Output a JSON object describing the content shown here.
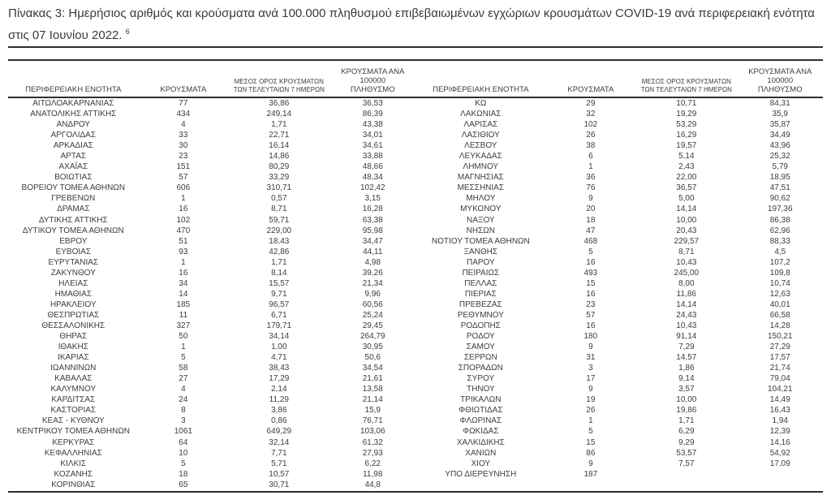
{
  "title": {
    "text": "Πίνακας 3:  Ημερήσιος αριθμός και κρούσματα ανά 100.000 πληθυσμού επιβεβαιωμένων εγχώριων κρουσμάτων COVID-19 ανά περιφερειακή ενότητα στις 07 Ιουνίου 2022.",
    "footnote_marker": "6"
  },
  "table": {
    "headers": {
      "region": "ΠΕΡΙΦΕΡΕΙΑΚΗ ΕΝΟΤΗΤΑ",
      "cases": "ΚΡΟΥΣΜΑΤΑ",
      "avg7": "ΜΕΣΟΣ ΟΡΟΣ ΚΡΟΥΣΜΑΤΩΝ\nΤΩΝ ΤΕΛΕΥΤΑΙΩΝ 7 ΗΜΕΡΩΝ",
      "per100k": "ΚΡΟΥΣΜΑΤΑ ΑΝΑ 100000\nΠΛΗΘΥΣΜΟ"
    },
    "left_rows": [
      [
        "ΑΙΤΩΛΟΑΚΑΡΝΑΝΙΑΣ",
        "77",
        "36,86",
        "36,53"
      ],
      [
        "ΑΝΑΤΟΛΙΚΗΣ ΑΤΤΙΚΗΣ",
        "434",
        "249,14",
        "86,39"
      ],
      [
        "ΑΝΔΡΟΥ",
        "4",
        "1,71",
        "43,38"
      ],
      [
        "ΑΡΓΟΛΙΔΑΣ",
        "33",
        "22,71",
        "34,01"
      ],
      [
        "ΑΡΚΑΔΙΑΣ",
        "30",
        "16,14",
        "34,61"
      ],
      [
        "ΑΡΤΑΣ",
        "23",
        "14,86",
        "33,88"
      ],
      [
        "ΑΧΑΪΑΣ",
        "151",
        "80,29",
        "48,66"
      ],
      [
        "ΒΟΙΩΤΙΑΣ",
        "57",
        "33,29",
        "48,34"
      ],
      [
        "ΒΟΡΕΙΟΥ ΤΟΜΕΑ ΑΘΗΝΩΝ",
        "606",
        "310,71",
        "102,42"
      ],
      [
        "ΓΡΕΒΕΝΩΝ",
        "1",
        "0,57",
        "3,15"
      ],
      [
        "ΔΡΑΜΑΣ",
        "16",
        "8,71",
        "16,28"
      ],
      [
        "ΔΥΤΙΚΗΣ ΑΤΤΙΚΗΣ",
        "102",
        "59,71",
        "63,38"
      ],
      [
        "ΔΥΤΙΚΟΥ ΤΟΜΕΑ ΑΘΗΝΩΝ",
        "470",
        "229,00",
        "95,98"
      ],
      [
        "ΕΒΡΟΥ",
        "51",
        "18,43",
        "34,47"
      ],
      [
        "ΕΥΒΟΙΑΣ",
        "93",
        "42,86",
        "44,11"
      ],
      [
        "ΕΥΡΥΤΑΝΙΑΣ",
        "1",
        "1,71",
        "4,98"
      ],
      [
        "ΖΑΚΥΝΘΟΥ",
        "16",
        "8,14",
        "39,26"
      ],
      [
        "ΗΛΕΙΑΣ",
        "34",
        "15,57",
        "21,34"
      ],
      [
        "ΗΜΑΘΙΑΣ",
        "14",
        "9,71",
        "9,96"
      ],
      [
        "ΗΡΑΚΛΕΙΟΥ",
        "185",
        "96,57",
        "60,56"
      ],
      [
        "ΘΕΣΠΡΩΤΙΑΣ",
        "11",
        "6,71",
        "25,24"
      ],
      [
        "ΘΕΣΣΑΛΟΝΙΚΗΣ",
        "327",
        "179,71",
        "29,45"
      ],
      [
        "ΘΗΡΑΣ",
        "50",
        "34,14",
        "264,79"
      ],
      [
        "ΙΘΑΚΗΣ",
        "1",
        "1,00",
        "30,95"
      ],
      [
        "ΙΚΑΡΙΑΣ",
        "5",
        "4,71",
        "50,6"
      ],
      [
        "ΙΩΑΝΝΙΝΩΝ",
        "58",
        "38,43",
        "34,54"
      ],
      [
        "ΚΑΒΑΛΑΣ",
        "27",
        "17,29",
        "21,61"
      ],
      [
        "ΚΑΛΥΜΝΟΥ",
        "4",
        "2,14",
        "13,58"
      ],
      [
        "ΚΑΡΔΙΤΣΑΣ",
        "24",
        "11,29",
        "21,14"
      ],
      [
        "ΚΑΣΤΟΡΙΑΣ",
        "8",
        "3,86",
        "15,9"
      ],
      [
        "ΚΕΑΣ - ΚΥΘΝΟΥ",
        "3",
        "0,86",
        "76,71"
      ],
      [
        "ΚΕΝΤΡΙΚΟΥ ΤΟΜΕΑ ΑΘΗΝΩΝ",
        "1061",
        "649,29",
        "103,06"
      ],
      [
        "ΚΕΡΚΥΡΑΣ",
        "64",
        "32,14",
        "61,32"
      ],
      [
        "ΚΕΦΑΛΛΗΝΙΑΣ",
        "10",
        "7,71",
        "27,93"
      ],
      [
        "ΚΙΛΚΙΣ",
        "5",
        "5,71",
        "6,22"
      ],
      [
        "ΚΟΖΑΝΗΣ",
        "18",
        "10,57",
        "11,98"
      ],
      [
        "ΚΟΡΙΝΘΙΑΣ",
        "65",
        "30,71",
        "44,8"
      ]
    ],
    "right_rows": [
      [
        "ΚΩ",
        "29",
        "10,71",
        "84,31"
      ],
      [
        "ΛΑΚΩΝΙΑΣ",
        "32",
        "19,29",
        "35,9"
      ],
      [
        "ΛΑΡΙΣΑΣ",
        "102",
        "53,29",
        "35,87"
      ],
      [
        "ΛΑΣΙΘΙΟΥ",
        "26",
        "16,29",
        "34,49"
      ],
      [
        "ΛΕΣΒΟΥ",
        "38",
        "19,57",
        "43,96"
      ],
      [
        "ΛΕΥΚΑΔΑΣ",
        "6",
        "5,14",
        "25,32"
      ],
      [
        "ΛΗΜΝΟΥ",
        "1",
        "2,43",
        "5,79"
      ],
      [
        "ΜΑΓΝΗΣΙΑΣ",
        "36",
        "22,00",
        "18,95"
      ],
      [
        "ΜΕΣΣΗΝΙΑΣ",
        "76",
        "36,57",
        "47,51"
      ],
      [
        "ΜΗΛΟΥ",
        "9",
        "5,00",
        "90,62"
      ],
      [
        "ΜΥΚΟΝΟΥ",
        "20",
        "14,14",
        "197,36"
      ],
      [
        "ΝΑΞΟΥ",
        "18",
        "10,00",
        "86,38"
      ],
      [
        "ΝΗΣΩΝ",
        "47",
        "20,43",
        "62,96"
      ],
      [
        "ΝΟΤΙΟΥ ΤΟΜΕΑ ΑΘΗΝΩΝ",
        "468",
        "229,57",
        "88,33"
      ],
      [
        "ΞΑΝΘΗΣ",
        "5",
        "8,71",
        "4,5"
      ],
      [
        "ΠΑΡΟΥ",
        "16",
        "10,43",
        "107,2"
      ],
      [
        "ΠΕΙΡΑΙΩΣ",
        "493",
        "245,00",
        "109,8"
      ],
      [
        "ΠΕΛΛΑΣ",
        "15",
        "8,00",
        "10,74"
      ],
      [
        "ΠΙΕΡΙΑΣ",
        "16",
        "11,86",
        "12,63"
      ],
      [
        "ΠΡΕΒΕΖΑΣ",
        "23",
        "14,14",
        "40,01"
      ],
      [
        "ΡΕΘΥΜΝΟΥ",
        "57",
        "24,43",
        "66,58"
      ],
      [
        "ΡΟΔΟΠΗΣ",
        "16",
        "10,43",
        "14,28"
      ],
      [
        "ΡΟΔΟΥ",
        "180",
        "91,14",
        "150,21"
      ],
      [
        "ΣΑΜΟΥ",
        "9",
        "7,29",
        "27,29"
      ],
      [
        "ΣΕΡΡΩΝ",
        "31",
        "14,57",
        "17,57"
      ],
      [
        "ΣΠΟΡΑΔΩΝ",
        "3",
        "1,86",
        "21,74"
      ],
      [
        "ΣΥΡΟΥ",
        "17",
        "9,14",
        "79,04"
      ],
      [
        "ΤΗΝΟΥ",
        "9",
        "3,57",
        "104,21"
      ],
      [
        "ΤΡΙΚΑΛΩΝ",
        "19",
        "10,00",
        "14,49"
      ],
      [
        "ΦΘΙΩΤΙΔΑΣ",
        "26",
        "19,86",
        "16,43"
      ],
      [
        "ΦΛΩΡΙΝΑΣ",
        "1",
        "1,71",
        "1,94"
      ],
      [
        "ΦΩΚΙΔΑΣ",
        "5",
        "6,29",
        "12,39"
      ],
      [
        "ΧΑΛΚΙΔΙΚΗΣ",
        "15",
        "9,29",
        "14,16"
      ],
      [
        "ΧΑΝΙΩΝ",
        "86",
        "53,57",
        "54,92"
      ],
      [
        "ΧΙΟΥ",
        "9",
        "7,57",
        "17,09"
      ],
      [
        "ΥΠΟ ΔΙΕΡΕΥΝΗΣΗ",
        "187",
        "",
        ""
      ]
    ]
  }
}
